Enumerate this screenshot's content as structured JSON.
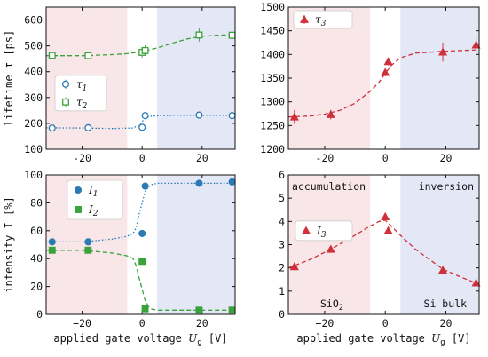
{
  "colors": {
    "tau1": "#2a7ab5",
    "tau2": "#3aa23a",
    "tau3": "#d0303a",
    "accumulation_region": "#f8e6e8",
    "inversion_region": "#e4e7f6"
  },
  "chart_data": [
    {
      "id": "top-left",
      "type": "scatter",
      "ylabel": "lifetime τ [ps]",
      "xlim": [
        -32,
        31
      ],
      "ylim": [
        100,
        650
      ],
      "xticks": [
        "-20",
        "0",
        "20"
      ],
      "yticks": [
        "100",
        "200",
        "300",
        "400",
        "500",
        "600"
      ],
      "regions": {
        "accumulation": [
          -32,
          -5
        ],
        "inversion": [
          5,
          31
        ]
      },
      "legend_position": "center-left",
      "series": [
        {
          "name": "τ1",
          "marker": "circle-open",
          "fit": "dotted",
          "x": [
            -30,
            -18,
            0,
            1,
            19,
            30
          ],
          "y": [
            182,
            183,
            185,
            230,
            232,
            230
          ],
          "err": [
            5,
            5,
            5,
            5,
            5,
            5
          ],
          "fit_x": [
            -32,
            -20,
            -10,
            -3,
            -1,
            0,
            1,
            3,
            10,
            20,
            31
          ],
          "fit_y": [
            183,
            182,
            180,
            182,
            194,
            207,
            220,
            228,
            231,
            231,
            231
          ]
        },
        {
          "name": "τ2",
          "marker": "square-open",
          "fit": "dashed",
          "x": [
            -30,
            -18,
            0,
            1,
            19,
            30
          ],
          "y": [
            463,
            462,
            475,
            482,
            542,
            541
          ],
          "err": [
            8,
            8,
            20,
            20,
            25,
            18
          ],
          "fit_x": [
            -32,
            -20,
            -10,
            -5,
            0,
            5,
            10,
            15,
            20,
            25,
            31
          ],
          "fit_y": [
            462,
            462,
            466,
            470,
            478,
            492,
            510,
            527,
            537,
            541,
            543
          ]
        }
      ]
    },
    {
      "id": "top-right",
      "type": "scatter",
      "ylabel": "",
      "xlim": [
        -32,
        31
      ],
      "ylim": [
        1200,
        1500
      ],
      "xticks": [
        "-20",
        "0",
        "20"
      ],
      "yticks": [
        "1200",
        "1250",
        "1300",
        "1350",
        "1400",
        "1450",
        "1500"
      ],
      "regions": {
        "accumulation": [
          -32,
          -5
        ],
        "inversion": [
          5,
          31
        ]
      },
      "legend_position": "top-left",
      "series": [
        {
          "name": "τ3",
          "marker": "triangle-filled",
          "fit": "dashed",
          "x": [
            -30,
            -18,
            0,
            1,
            19,
            30
          ],
          "y": [
            1268,
            1273,
            1362,
            1385,
            1405,
            1420
          ],
          "err": [
            15,
            10,
            8,
            8,
            20,
            22
          ],
          "fit_x": [
            -32,
            -25,
            -20,
            -15,
            -10,
            -5,
            -2,
            0,
            2,
            5,
            10,
            20,
            31
          ],
          "fit_y": [
            1268,
            1270,
            1274,
            1282,
            1297,
            1322,
            1342,
            1360,
            1377,
            1393,
            1403,
            1407,
            1410
          ]
        }
      ]
    },
    {
      "id": "bottom-left",
      "type": "scatter",
      "ylabel": "intensity I [%]",
      "xlabel": "applied gate voltage Ug [V]",
      "xlim": [
        -32,
        31
      ],
      "ylim": [
        0,
        100
      ],
      "xticks": [
        "−20",
        "0",
        "20"
      ],
      "yticks": [
        "0",
        "20",
        "40",
        "60",
        "80",
        "100"
      ],
      "regions": {
        "accumulation": [
          -32,
          -5
        ],
        "inversion": [
          5,
          31
        ]
      },
      "legend_position": "top-center",
      "series": [
        {
          "name": "I1",
          "marker": "circle-filled",
          "fit": "dotted",
          "x": [
            -30,
            -18,
            0,
            1,
            19,
            30
          ],
          "y": [
            52,
            52,
            58,
            92,
            94,
            95
          ],
          "fit_x": [
            -32,
            -20,
            -10,
            -5,
            -3,
            -2,
            -1,
            0,
            1,
            2,
            3,
            5,
            10,
            20,
            31
          ],
          "fit_y": [
            52,
            52,
            54,
            56,
            58,
            62,
            72,
            80,
            88,
            91,
            93,
            94,
            94,
            94,
            94
          ]
        },
        {
          "name": "I2",
          "marker": "square-filled",
          "fit": "dashed",
          "x": [
            -30,
            -18,
            0,
            1,
            19,
            30
          ],
          "y": [
            46,
            46,
            38,
            4,
            3,
            3
          ],
          "fit_x": [
            -32,
            -20,
            -10,
            -5,
            -3,
            -2,
            -1,
            0,
            1,
            2,
            3,
            5,
            10,
            20,
            31
          ],
          "fit_y": [
            46,
            46,
            44,
            42,
            40,
            35,
            26,
            18,
            10,
            6,
            4,
            3,
            3,
            3,
            3
          ]
        }
      ]
    },
    {
      "id": "bottom-right",
      "type": "scatter",
      "ylabel": "",
      "xlabel": "applied gate voltage Ug [V]",
      "xlim": [
        -32,
        31
      ],
      "ylim": [
        0,
        6
      ],
      "xticks": [
        "−20",
        "0",
        "20"
      ],
      "yticks": [
        "0",
        "1",
        "2",
        "3",
        "4",
        "5",
        "6"
      ],
      "regions": {
        "accumulation": [
          -32,
          -5
        ],
        "inversion": [
          5,
          31
        ]
      },
      "legend_position": "center-left",
      "annotations": {
        "accumulation": "accumulation",
        "inversion": "inversion",
        "sio2": "SiO2",
        "si_bulk": "Si bulk"
      },
      "series": [
        {
          "name": "I3",
          "marker": "triangle-filled",
          "fit": "dashed",
          "x": [
            -30,
            -18,
            0,
            1,
            19,
            30
          ],
          "y": [
            2.05,
            2.8,
            4.2,
            3.6,
            1.9,
            1.35
          ],
          "fit_x": [
            -32,
            -25,
            -18,
            -10,
            -5,
            -2,
            0,
            2,
            5,
            10,
            19,
            25,
            31
          ],
          "fit_y": [
            2.0,
            2.35,
            2.8,
            3.4,
            3.8,
            4.0,
            4.05,
            3.8,
            3.4,
            2.8,
            1.95,
            1.6,
            1.3
          ]
        }
      ]
    }
  ]
}
